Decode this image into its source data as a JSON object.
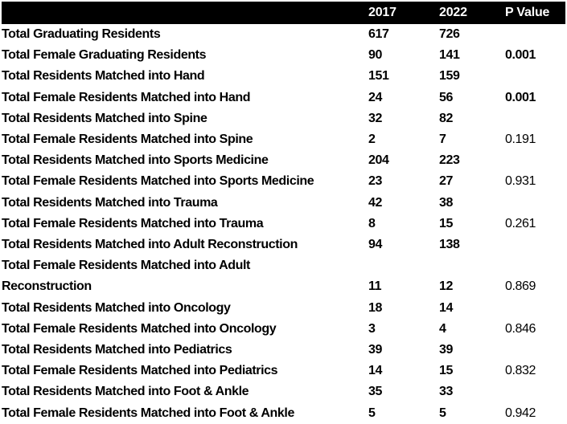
{
  "chart_data": {
    "type": "table",
    "columns": [
      "",
      "2017",
      "2022",
      "P Value"
    ],
    "rows": [
      {
        "label": "Total Graduating Residents",
        "v2017": "617",
        "v2022": "726",
        "p": ""
      },
      {
        "label": "Total Female Graduating Residents",
        "v2017": "90",
        "v2022": "141",
        "p": "0.001",
        "p_bold": true
      },
      {
        "label": "Total Residents Matched into Hand",
        "v2017": "151",
        "v2022": "159",
        "p": ""
      },
      {
        "label": "Total Female Residents Matched into Hand",
        "v2017": "24",
        "v2022": "56",
        "p": "0.001",
        "p_bold": true
      },
      {
        "label": "Total Residents Matched into Spine",
        "v2017": "32",
        "v2022": "82",
        "p": ""
      },
      {
        "label": "Total Female Residents Matched into Spine",
        "v2017": "2",
        "v2022": "7",
        "p": "0.191"
      },
      {
        "label": "Total Residents Matched into Sports Medicine",
        "v2017": "204",
        "v2022": "223",
        "p": ""
      },
      {
        "label": "Total Female Residents Matched into Sports Medicine",
        "v2017": "23",
        "v2022": "27",
        "p": "0.931"
      },
      {
        "label": "Total Residents Matched into Trauma",
        "v2017": "42",
        "v2022": "38",
        "p": ""
      },
      {
        "label": "Total Female Residents Matched into Trauma",
        "v2017": "8",
        "v2022": "15",
        "p": "0.261"
      },
      {
        "label": "Total Residents Matched into Adult Reconstruction",
        "v2017": "94",
        "v2022": "138",
        "p": ""
      },
      {
        "label": "Total Female Residents Matched into Adult",
        "label2": "Reconstruction",
        "v2017": "11",
        "v2022": "12",
        "p": "0.869"
      },
      {
        "label": "Total Residents Matched into Oncology",
        "v2017": "18",
        "v2022": "14",
        "p": ""
      },
      {
        "label": "Total Female Residents Matched into Oncology",
        "v2017": "3",
        "v2022": "4",
        "p": "0.846"
      },
      {
        "label": "Total Residents Matched into Pediatrics",
        "v2017": "39",
        "v2022": "39",
        "p": ""
      },
      {
        "label": "Total Female Residents Matched into Pediatrics",
        "v2017": "14",
        "v2022": "15",
        "p": "0.832"
      },
      {
        "label": "Total Residents Matched into Foot & Ankle",
        "v2017": "35",
        "v2022": "33",
        "p": ""
      },
      {
        "label": "Total Female Residents Matched into Foot & Ankle",
        "v2017": "5",
        "v2022": "5",
        "p": "0.942"
      }
    ],
    "title": "",
    "legend": null,
    "layout_hints": {
      "header_style": "white bold text on black band",
      "p_values_bold_when_significant": true,
      "gridlines": false
    }
  },
  "colors": {
    "header_bg": "#000000",
    "header_text": "#ffffff",
    "body_text": "#000000",
    "background": "#ffffff"
  }
}
